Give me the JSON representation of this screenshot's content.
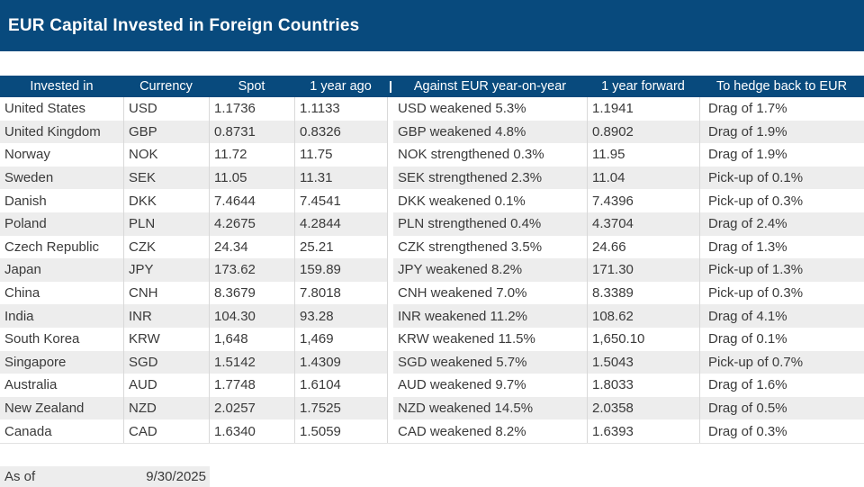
{
  "title": "EUR Capital Invested in Foreign Countries",
  "colors": {
    "navy_bar": "#084a7d",
    "stripe_gray": "#ededed",
    "gridline": "#d9d9d9",
    "body_text": "#3a3a3a",
    "header_text": "#ffffff"
  },
  "table": {
    "columns": [
      "Invested in",
      "Currency",
      "Spot",
      "1 year ago",
      "Against EUR year-on-year",
      "1 year forward",
      "To hedge back to EUR"
    ],
    "rows": [
      {
        "invested_in": "United States",
        "currency": "USD",
        "spot": "1.1736",
        "year_ago": "1.1133",
        "against_eur": "USD weakened 5.3%",
        "forward": "1.1941",
        "hedge": "Drag of 1.7%"
      },
      {
        "invested_in": "United Kingdom",
        "currency": "GBP",
        "spot": "0.8731",
        "year_ago": "0.8326",
        "against_eur": "GBP weakened 4.8%",
        "forward": "0.8902",
        "hedge": "Drag of 1.9%"
      },
      {
        "invested_in": "Norway",
        "currency": "NOK",
        "spot": "11.72",
        "year_ago": "11.75",
        "against_eur": "NOK strengthened 0.3%",
        "forward": "11.95",
        "hedge": "Drag of 1.9%"
      },
      {
        "invested_in": "Sweden",
        "currency": "SEK",
        "spot": "11.05",
        "year_ago": "11.31",
        "against_eur": "SEK strengthened 2.3%",
        "forward": "11.04",
        "hedge": "Pick-up of 0.1%"
      },
      {
        "invested_in": "Danish",
        "currency": "DKK",
        "spot": "7.4644",
        "year_ago": "7.4541",
        "against_eur": "DKK weakened 0.1%",
        "forward": "7.4396",
        "hedge": "Pick-up of 0.3%"
      },
      {
        "invested_in": "Poland",
        "currency": "PLN",
        "spot": "4.2675",
        "year_ago": "4.2844",
        "against_eur": "PLN strengthened 0.4%",
        "forward": "4.3704",
        "hedge": "Drag of 2.4%"
      },
      {
        "invested_in": "Czech Republic",
        "currency": "CZK",
        "spot": "24.34",
        "year_ago": "25.21",
        "against_eur": "CZK strengthened 3.5%",
        "forward": "24.66",
        "hedge": "Drag of 1.3%"
      },
      {
        "invested_in": "Japan",
        "currency": "JPY",
        "spot": "173.62",
        "year_ago": "159.89",
        "against_eur": "JPY weakened 8.2%",
        "forward": "171.30",
        "hedge": "Pick-up of 1.3%"
      },
      {
        "invested_in": "China",
        "currency": "CNH",
        "spot": "8.3679",
        "year_ago": "7.8018",
        "against_eur": "CNH weakened 7.0%",
        "forward": "8.3389",
        "hedge": "Pick-up of 0.3%"
      },
      {
        "invested_in": "India",
        "currency": "INR",
        "spot": "104.30",
        "year_ago": "93.28",
        "against_eur": "INR weakened 11.2%",
        "forward": "108.62",
        "hedge": "Drag of 4.1%"
      },
      {
        "invested_in": "South Korea",
        "currency": "KRW",
        "spot": "1,648",
        "year_ago": "1,469",
        "against_eur": "KRW weakened 11.5%",
        "forward": "1,650.10",
        "hedge": "Drag of 0.1%"
      },
      {
        "invested_in": "Singapore",
        "currency": "SGD",
        "spot": "1.5142",
        "year_ago": "1.4309",
        "against_eur": "SGD weakened 5.7%",
        "forward": "1.5043",
        "hedge": "Pick-up of 0.7%"
      },
      {
        "invested_in": "Australia",
        "currency": "AUD",
        "spot": "1.7748",
        "year_ago": "1.6104",
        "against_eur": "AUD weakened 9.7%",
        "forward": "1.8033",
        "hedge": "Drag of 1.6%"
      },
      {
        "invested_in": "New Zealand",
        "currency": "NZD",
        "spot": "2.0257",
        "year_ago": "1.7525",
        "against_eur": "NZD weakened 14.5%",
        "forward": "2.0358",
        "hedge": "Drag of 0.5%"
      },
      {
        "invested_in": "Canada",
        "currency": "CAD",
        "spot": "1.6340",
        "year_ago": "1.5059",
        "against_eur": "CAD weakened 8.2%",
        "forward": "1.6393",
        "hedge": "Drag of 0.3%"
      }
    ]
  },
  "footer": {
    "as_of_label": "As of",
    "as_of_date": "9/30/2025"
  }
}
